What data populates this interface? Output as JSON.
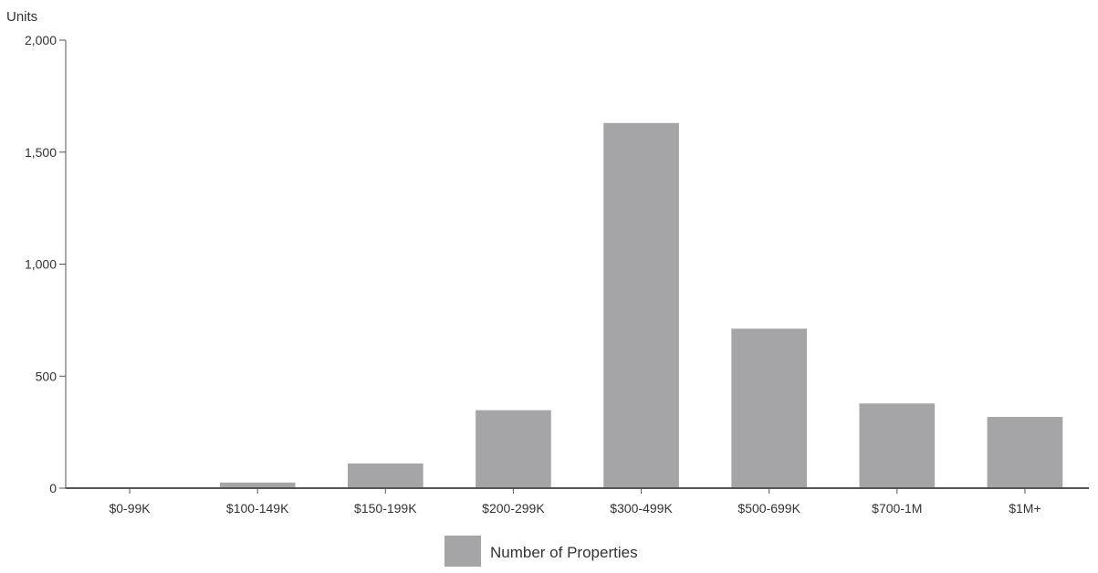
{
  "chart_data": {
    "type": "bar",
    "title": "",
    "xlabel": "",
    "ylabel": "Units",
    "categories": [
      "$0-99K",
      "$100-149K",
      "$150-199K",
      "$200-299K",
      "$300-499K",
      "$500-699K",
      "$700-1M",
      "$1M+"
    ],
    "series": [
      {
        "name": "Number of Properties",
        "values": [
          0,
          25,
          110,
          348,
          1630,
          712,
          378,
          318
        ]
      }
    ],
    "ylim": [
      0,
      2000
    ],
    "yticks": [
      0,
      500,
      1000,
      1500,
      2000
    ],
    "ytick_labels": [
      "0",
      "500",
      "1,000",
      "1,500",
      "2,000"
    ],
    "grid": false,
    "legend_position": "bottom-center",
    "colors": {
      "bar": "#a5a5a8",
      "axis": "#555555",
      "text": "#333333"
    }
  }
}
